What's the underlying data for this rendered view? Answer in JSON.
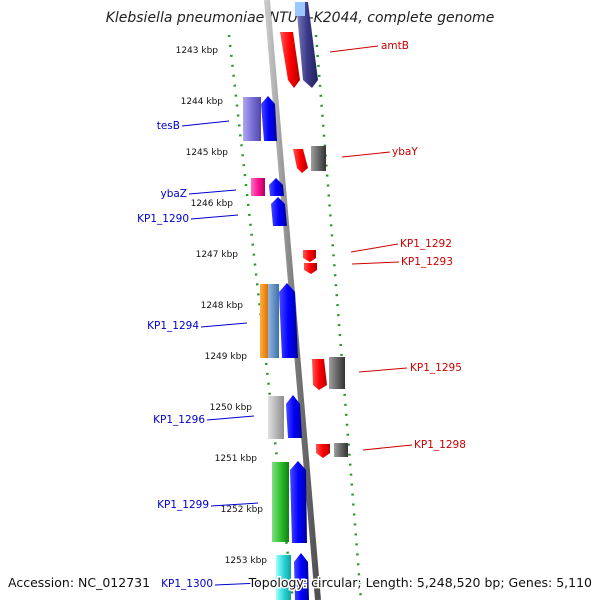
{
  "title": "Klebsiella pneumoniae NTUH-K2044, complete genome",
  "ruler": {
    "unit": "kbp",
    "ticks": [
      "1243 kbp",
      "1244 kbp",
      "1245 kbp",
      "1246 kbp",
      "1247 kbp",
      "1248 kbp",
      "1249 kbp",
      "1250 kbp",
      "1251 kbp",
      "1252 kbp",
      "1253 kbp"
    ]
  },
  "genes": [
    {
      "name": "amtB",
      "strand": "+",
      "color": "#ff0000"
    },
    {
      "name": "tesB",
      "strand": "-",
      "color": "#0000ff"
    },
    {
      "name": "ybaY",
      "strand": "+",
      "color": "#ff0000"
    },
    {
      "name": "ybaZ",
      "strand": "-",
      "color": "#ff1493"
    },
    {
      "name": "KP1_1290",
      "strand": "-",
      "color": "#0000ff"
    },
    {
      "name": "KP1_1292",
      "strand": "+",
      "color": "#ff0000"
    },
    {
      "name": "KP1_1293",
      "strand": "+",
      "color": "#ff0000"
    },
    {
      "name": "KP1_1294",
      "strand": "-",
      "color": "#0000ff"
    },
    {
      "name": "KP1_1295",
      "strand": "+",
      "color": "#ff0000"
    },
    {
      "name": "KP1_1296",
      "strand": "-",
      "color": "#0000ff"
    },
    {
      "name": "KP1_1298",
      "strand": "+",
      "color": "#ff0000"
    },
    {
      "name": "KP1_1299",
      "strand": "-",
      "color": "#0000ff"
    },
    {
      "name": "KP1_1300",
      "strand": "-",
      "color": "#0000ff"
    }
  ],
  "footer": {
    "accession": "Accession: NC_012731",
    "summary": "Topology: circular; Length: 5,248,520 bp; Genes: 5,110"
  }
}
